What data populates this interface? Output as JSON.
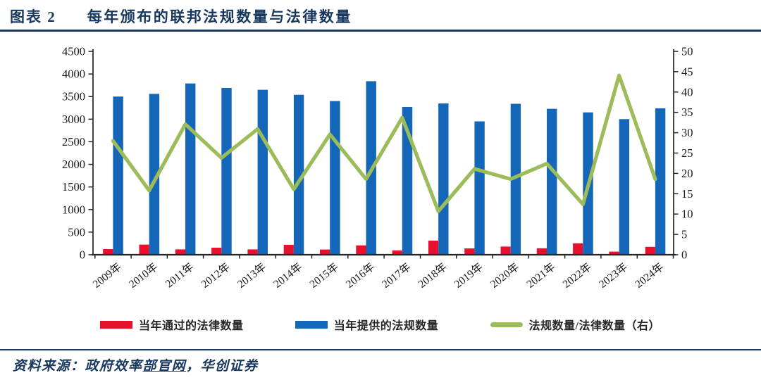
{
  "header": {
    "label": "图表 2",
    "title": "每年颁布的联邦法规数量与法律数量"
  },
  "colors": {
    "accent_dark_blue": "#17375E",
    "bar_red": "#E8112D",
    "bar_blue": "#1467B8",
    "line_green": "#9CBB59",
    "axis_ink": "#262626"
  },
  "legend": {
    "items": [
      {
        "label": "当年通过的法律数量",
        "swatch": "bar",
        "color": "#E8112D"
      },
      {
        "label": "当年提供的法规数量",
        "swatch": "bar",
        "color": "#1467B8"
      },
      {
        "label": "法规数量/法律数量（右）",
        "swatch": "line",
        "color": "#9CBB59"
      }
    ]
  },
  "footer": {
    "prefix": "资料来源：政府效率",
    "link": "部官网",
    "suffix": "，华创证券"
  },
  "chart_data": {
    "type": "bar",
    "subtype": "combo_bar_line_dual_axis",
    "categories": [
      "2009年",
      "2010年",
      "2011年",
      "2012年",
      "2013年",
      "2014年",
      "2015年",
      "2016年",
      "2017年",
      "2018年",
      "2019年",
      "2020年",
      "2021年",
      "2022年",
      "2023年",
      "2024年"
    ],
    "series": [
      {
        "name": "当年通过的法律数量",
        "type": "bar",
        "axis": "left",
        "color": "#E8112D",
        "values": [
          125,
          225,
          118,
          155,
          118,
          220,
          115,
          207,
          97,
          313,
          140,
          180,
          144,
          254,
          68,
          174
        ]
      },
      {
        "name": "当年提供的法规数量",
        "type": "bar",
        "axis": "left",
        "color": "#1467B8",
        "values": [
          3500,
          3560,
          3790,
          3690,
          3650,
          3540,
          3400,
          3840,
          3270,
          3350,
          2950,
          3340,
          3230,
          3150,
          3000,
          3240
        ]
      },
      {
        "name": "法规数量/法律数量（右）",
        "type": "line",
        "axis": "right",
        "color": "#9CBB59",
        "values": [
          28.0,
          15.8,
          32.1,
          23.8,
          30.9,
          16.1,
          29.6,
          18.6,
          33.7,
          10.7,
          21.1,
          18.6,
          22.4,
          12.4,
          44.1,
          18.6
        ]
      }
    ],
    "left_axis": {
      "min": 0,
      "max": 4500,
      "step": 500,
      "ticks": [
        0,
        500,
        1000,
        1500,
        2000,
        2500,
        3000,
        3500,
        4000,
        4500
      ]
    },
    "right_axis": {
      "min": 0,
      "max": 50,
      "step": 5,
      "ticks": [
        0,
        5,
        10,
        15,
        20,
        25,
        30,
        35,
        40,
        45,
        50
      ]
    },
    "grid": false,
    "legend_position": "bottom",
    "title": "每年颁布的联邦法规数量与法律数量"
  }
}
